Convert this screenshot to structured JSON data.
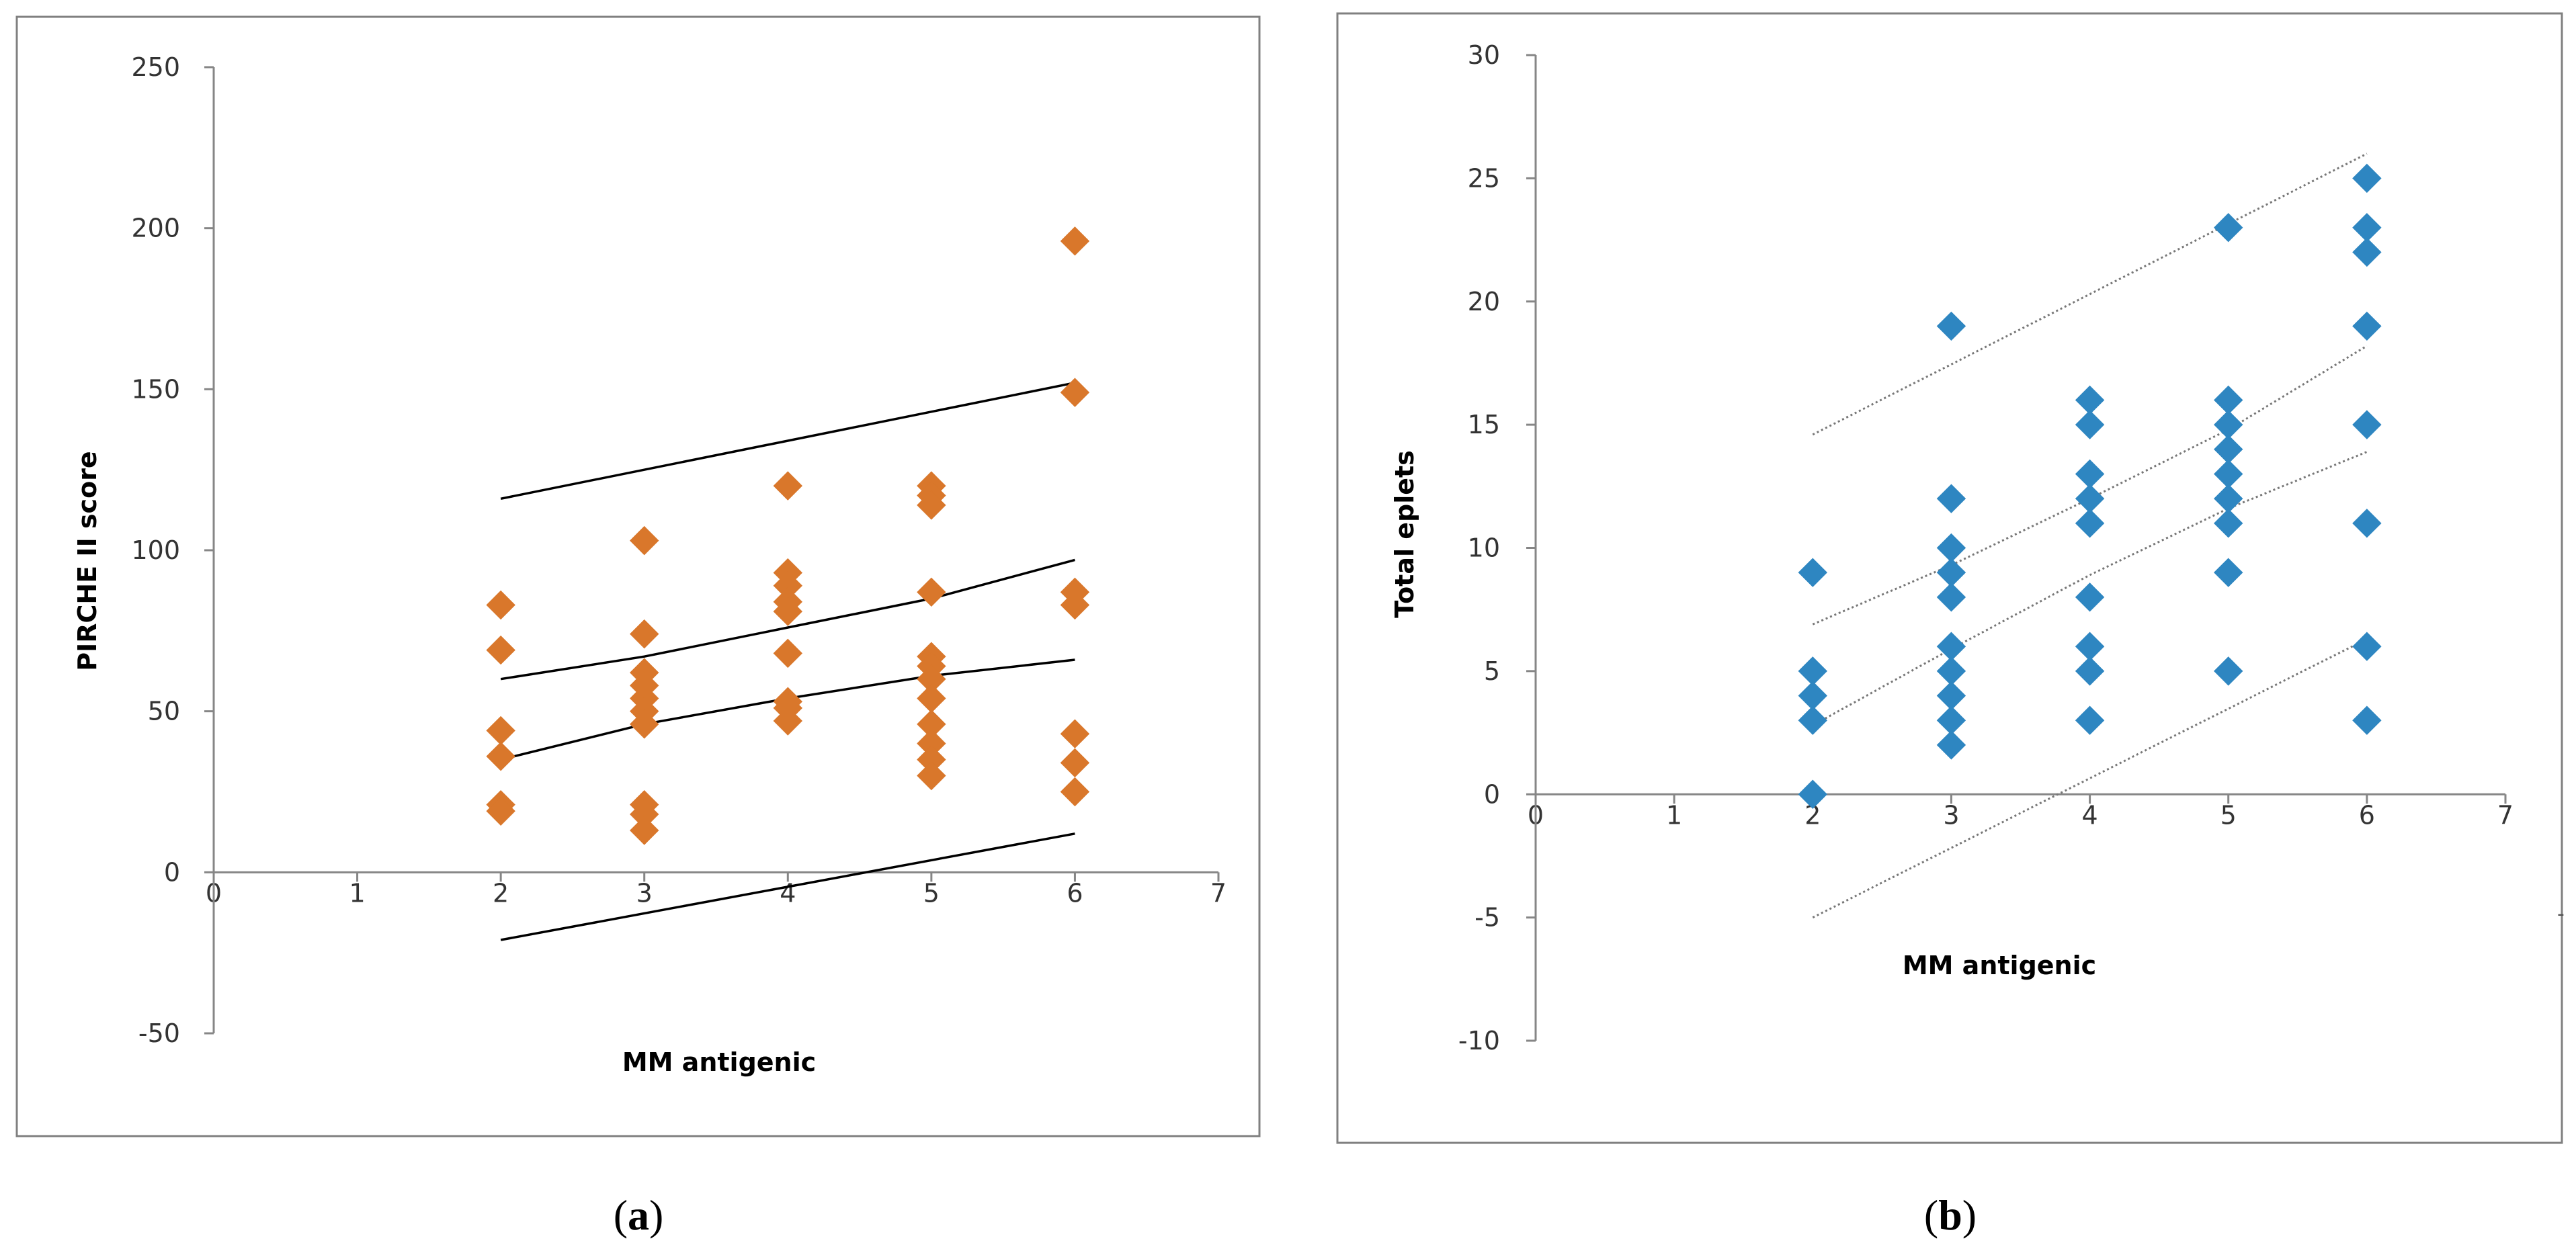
{
  "chart_data": [
    {
      "type": "scatter",
      "panel": "a",
      "caption": {
        "open": "(",
        "letter": "a",
        "close": ")"
      },
      "xlabel": "MM antigenic",
      "ylabel": "PIRCHE II score",
      "xlim": [
        0,
        7
      ],
      "ylim": [
        -50,
        250
      ],
      "xticks": [
        0,
        1,
        2,
        3,
        4,
        5,
        6,
        7
      ],
      "yticks": [
        -50,
        0,
        50,
        100,
        150,
        200,
        250
      ],
      "x_tick_labels": [
        "0",
        "1",
        "2",
        "3",
        "4",
        "5",
        "6",
        "7"
      ],
      "y_tick_labels": [
        "-50",
        "0",
        "50",
        "100",
        "150",
        "200",
        "250"
      ],
      "marker_color": "#D9772B",
      "line_color": "#000000",
      "line_style": "solid",
      "points": [
        {
          "x": 2,
          "y": 83
        },
        {
          "x": 2,
          "y": 69
        },
        {
          "x": 2,
          "y": 44
        },
        {
          "x": 2,
          "y": 36
        },
        {
          "x": 2,
          "y": 21
        },
        {
          "x": 2,
          "y": 19
        },
        {
          "x": 3,
          "y": 103
        },
        {
          "x": 3,
          "y": 74
        },
        {
          "x": 3,
          "y": 62
        },
        {
          "x": 3,
          "y": 58
        },
        {
          "x": 3,
          "y": 54
        },
        {
          "x": 3,
          "y": 50
        },
        {
          "x": 3,
          "y": 46
        },
        {
          "x": 3,
          "y": 21
        },
        {
          "x": 3,
          "y": 18
        },
        {
          "x": 3,
          "y": 13
        },
        {
          "x": 4,
          "y": 120
        },
        {
          "x": 4,
          "y": 93
        },
        {
          "x": 4,
          "y": 89
        },
        {
          "x": 4,
          "y": 84
        },
        {
          "x": 4,
          "y": 81
        },
        {
          "x": 4,
          "y": 68
        },
        {
          "x": 4,
          "y": 53
        },
        {
          "x": 4,
          "y": 51
        },
        {
          "x": 4,
          "y": 47
        },
        {
          "x": 5,
          "y": 120
        },
        {
          "x": 5,
          "y": 117
        },
        {
          "x": 5,
          "y": 114
        },
        {
          "x": 5,
          "y": 87
        },
        {
          "x": 5,
          "y": 67
        },
        {
          "x": 5,
          "y": 64
        },
        {
          "x": 5,
          "y": 60
        },
        {
          "x": 5,
          "y": 54
        },
        {
          "x": 5,
          "y": 46
        },
        {
          "x": 5,
          "y": 40
        },
        {
          "x": 5,
          "y": 35
        },
        {
          "x": 5,
          "y": 30
        },
        {
          "x": 6,
          "y": 196
        },
        {
          "x": 6,
          "y": 149
        },
        {
          "x": 6,
          "y": 87
        },
        {
          "x": 6,
          "y": 83
        },
        {
          "x": 6,
          "y": 43
        },
        {
          "x": 6,
          "y": 34
        },
        {
          "x": 6,
          "y": 25
        }
      ],
      "lines": [
        {
          "name": "upper prediction bound",
          "points": [
            [
              2,
              116
            ],
            [
              6,
              152
            ]
          ]
        },
        {
          "name": "upper confidence bound",
          "points": [
            [
              2,
              60
            ],
            [
              3,
              67
            ],
            [
              4,
              76
            ],
            [
              5,
              85
            ],
            [
              6,
              97
            ]
          ]
        },
        {
          "name": "regression line",
          "points": [
            [
              2,
              35
            ],
            [
              3,
              46
            ],
            [
              4,
              54
            ],
            [
              5,
              61
            ],
            [
              6,
              66
            ]
          ]
        },
        {
          "name": "lower prediction bound",
          "points": [
            [
              2,
              -21
            ],
            [
              6,
              12
            ]
          ]
        }
      ]
    },
    {
      "type": "scatter",
      "panel": "b",
      "caption": {
        "open": "(",
        "letter": "b",
        "close": ")"
      },
      "xlabel": "MM antigenic",
      "ylabel": "Total eplets",
      "xlim": [
        0,
        7
      ],
      "ylim": [
        -10,
        30
      ],
      "xticks": [
        0,
        1,
        2,
        3,
        4,
        5,
        6,
        7
      ],
      "yticks": [
        -10,
        -5,
        0,
        5,
        10,
        15,
        20,
        25,
        30
      ],
      "x_tick_labels": [
        "0",
        "1",
        "2",
        "3",
        "4",
        "5",
        "6",
        "7"
      ],
      "y_tick_labels": [
        "-10",
        "-5",
        "0",
        "5",
        "10",
        "15",
        "20",
        "25",
        "30"
      ],
      "marker_color": "#2E86C1",
      "line_color": "#777777",
      "line_style": "dotted",
      "points": [
        {
          "x": 2,
          "y": 9
        },
        {
          "x": 2,
          "y": 5
        },
        {
          "x": 2,
          "y": 4
        },
        {
          "x": 2,
          "y": 3
        },
        {
          "x": 2,
          "y": 0
        },
        {
          "x": 3,
          "y": 19
        },
        {
          "x": 3,
          "y": 12
        },
        {
          "x": 3,
          "y": 10
        },
        {
          "x": 3,
          "y": 9
        },
        {
          "x": 3,
          "y": 8
        },
        {
          "x": 3,
          "y": 6
        },
        {
          "x": 3,
          "y": 5
        },
        {
          "x": 3,
          "y": 4
        },
        {
          "x": 3,
          "y": 3
        },
        {
          "x": 3,
          "y": 2
        },
        {
          "x": 4,
          "y": 16
        },
        {
          "x": 4,
          "y": 15
        },
        {
          "x": 4,
          "y": 13
        },
        {
          "x": 4,
          "y": 12
        },
        {
          "x": 4,
          "y": 11
        },
        {
          "x": 4,
          "y": 8
        },
        {
          "x": 4,
          "y": 6
        },
        {
          "x": 4,
          "y": 5
        },
        {
          "x": 4,
          "y": 3
        },
        {
          "x": 5,
          "y": 23
        },
        {
          "x": 5,
          "y": 16
        },
        {
          "x": 5,
          "y": 15
        },
        {
          "x": 5,
          "y": 14
        },
        {
          "x": 5,
          "y": 13
        },
        {
          "x": 5,
          "y": 12
        },
        {
          "x": 5,
          "y": 11
        },
        {
          "x": 5,
          "y": 9
        },
        {
          "x": 5,
          "y": 5
        },
        {
          "x": 6,
          "y": 25
        },
        {
          "x": 6,
          "y": 23
        },
        {
          "x": 6,
          "y": 22
        },
        {
          "x": 6,
          "y": 19
        },
        {
          "x": 6,
          "y": 15
        },
        {
          "x": 6,
          "y": 11
        },
        {
          "x": 6,
          "y": 6
        },
        {
          "x": 6,
          "y": 3
        }
      ],
      "lines": [
        {
          "name": "upper prediction bound",
          "points": [
            [
              2,
              14.6
            ],
            [
              6,
              26
            ]
          ]
        },
        {
          "name": "upper confidence bound",
          "points": [
            [
              2,
              6.9
            ],
            [
              3,
              9.3
            ],
            [
              4,
              12
            ],
            [
              5,
              14.8
            ],
            [
              6,
              18.2
            ]
          ]
        },
        {
          "name": "lower confidence bound",
          "points": [
            [
              2,
              2.8
            ],
            [
              3,
              5.9
            ],
            [
              4,
              8.9
            ],
            [
              5,
              11.6
            ],
            [
              6,
              13.9
            ]
          ]
        },
        {
          "name": "lower prediction bound",
          "points": [
            [
              2,
              -5
            ],
            [
              6,
              6.3
            ]
          ]
        }
      ]
    }
  ]
}
